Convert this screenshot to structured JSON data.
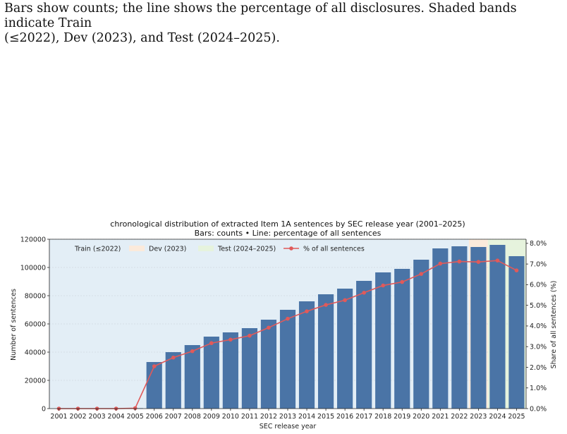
{
  "caption": {
    "line1": "Bars show counts; the line shows the percentage of all disclosures. Shaded bands indicate Train",
    "line2": "(≤2022), Dev (2023), and Test (2024–2025)."
  },
  "chart_data": {
    "type": "bar",
    "title": "chronological distribution of extracted Item 1A sentences by SEC release year (2001–2025)",
    "subtitle": "Bars: counts • Line: percentage of all sentences",
    "xlabel": "SEC release year",
    "ylabel": "Number of sentences",
    "y2label": "Share of all sentences (%)",
    "categories": [
      "2001",
      "2002",
      "2003",
      "2004",
      "2005",
      "2006",
      "2007",
      "2008",
      "2009",
      "2010",
      "2011",
      "2012",
      "2013",
      "2014",
      "2015",
      "2016",
      "2017",
      "2018",
      "2019",
      "2020",
      "2021",
      "2022",
      "2023",
      "2024",
      "2025"
    ],
    "series": [
      {
        "name": "",
        "kind": "bar",
        "axis": "left",
        "color": "#4a74a6",
        "values": [
          0,
          0,
          0,
          0,
          300,
          33000,
          40000,
          45000,
          51000,
          54000,
          57000,
          63000,
          70000,
          76000,
          81000,
          85000,
          90500,
          96500,
          99000,
          105500,
          113500,
          115000,
          114500,
          116000,
          108000
        ]
      },
      {
        "name": "% of all sentences",
        "kind": "line",
        "axis": "right",
        "color": "#e05a5a",
        "values": [
          0.0,
          0.0,
          0.0,
          0.0,
          0.02,
          2.05,
          2.47,
          2.78,
          3.17,
          3.34,
          3.53,
          3.92,
          4.35,
          4.71,
          5.02,
          5.25,
          5.61,
          5.96,
          6.13,
          6.52,
          7.02,
          7.12,
          7.1,
          7.17,
          6.69
        ]
      }
    ],
    "ylim": [
      0,
      120000
    ],
    "yticks": [
      0,
      20000,
      40000,
      60000,
      80000,
      100000,
      120000
    ],
    "y2lim": [
      0,
      8.2
    ],
    "y2ticks": [
      "0.0%",
      "1.0%",
      "2.0%",
      "3.0%",
      "4.0%",
      "5.0%",
      "6.0%",
      "7.0%",
      "8.0%"
    ],
    "bands": [
      {
        "label": "Train (≤2022)",
        "from": "2001",
        "to": "2022",
        "color": "#e3eef6"
      },
      {
        "label": "Dev (2023)",
        "from": "2023",
        "to": "2023",
        "color": "#fbeadb"
      },
      {
        "label": "Test (2024–2025)",
        "from": "2024",
        "to": "2025",
        "color": "#e6f3dd"
      }
    ],
    "grid": true,
    "legend_position": "top-left"
  }
}
